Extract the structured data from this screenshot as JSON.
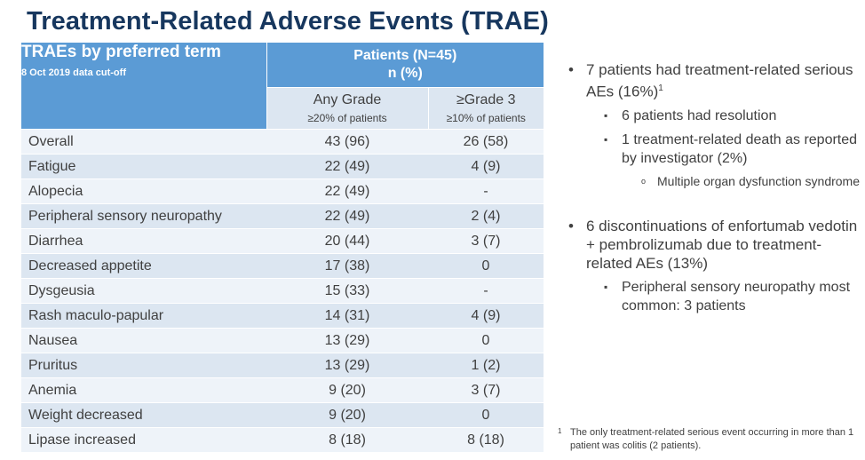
{
  "title": "Treatment-Related Adverse Events (TRAE)",
  "table": {
    "corner_title": "TRAEs by preferred term",
    "corner_subtitle": "8 Oct 2019 data cut-off",
    "patients_line1": "Patients (N=45)",
    "patients_line2": "n (%)",
    "col_any": "Any Grade",
    "col_any_sub": "≥20% of patients",
    "col_g3": "≥Grade 3",
    "col_g3_sub": "≥10% of patients",
    "rows": [
      {
        "term": "Overall",
        "any": "43 (96)",
        "g3": "26 (58)"
      },
      {
        "term": "Fatigue",
        "any": "22 (49)",
        "g3": "4 (9)"
      },
      {
        "term": "Alopecia",
        "any": "22 (49)",
        "g3": "-"
      },
      {
        "term": "Peripheral sensory neuropathy",
        "any": "22 (49)",
        "g3": "2 (4)"
      },
      {
        "term": "Diarrhea",
        "any": "20 (44)",
        "g3": "3 (7)"
      },
      {
        "term": "Decreased appetite",
        "any": "17 (38)",
        "g3": "0"
      },
      {
        "term": "Dysgeusia",
        "any": "15 (33)",
        "g3": "-"
      },
      {
        "term": "Rash maculo-papular",
        "any": "14 (31)",
        "g3": "4 (9)"
      },
      {
        "term": "Nausea",
        "any": "13 (29)",
        "g3": "0"
      },
      {
        "term": "Pruritus",
        "any": "13 (29)",
        "g3": "1 (2)"
      },
      {
        "term": "Anemia",
        "any": "9 (20)",
        "g3": "3 (7)"
      },
      {
        "term": "Weight decreased",
        "any": "9 (20)",
        "g3": "0"
      },
      {
        "term": "Lipase increased",
        "any": "8 (18)",
        "g3": "8 (18)"
      }
    ]
  },
  "bullets": {
    "b1": "7 patients had treatment-related serious AEs (16%)",
    "b1_sup": "1",
    "b1_sub1": "6 patients had resolution",
    "b1_sub2": "1 treatment-related death as reported by investigator (2%)",
    "b1_sub2_sub": "Multiple organ dysfunction syndrome",
    "b2": "6 discontinuations of enfortumab vedotin + pembrolizumab due to treatment-related AEs (13%)",
    "b2_sub": "Peripheral sensory neuropathy most common: 3 patients"
  },
  "footnote": {
    "marker": "1",
    "text": "The only treatment-related serious event occurring in more than 1 patient was colitis (2 patients)."
  }
}
